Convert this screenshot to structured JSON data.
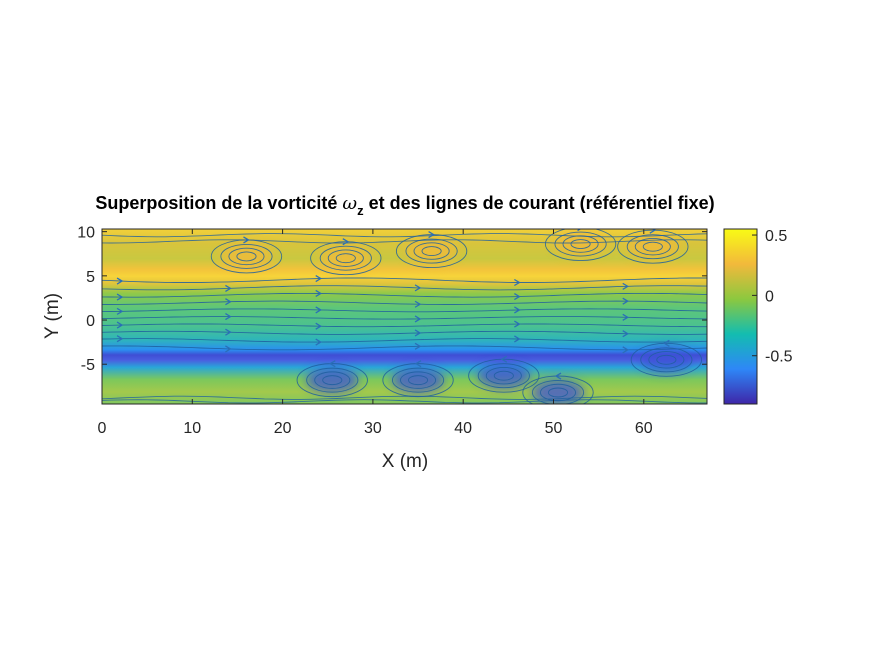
{
  "chart_data": {
    "type": "heatmap",
    "title_prefix": "Superposition de la vorticité ",
    "title_symbol": "ω",
    "title_subscript": "z",
    "title_suffix": " et des lignes de courant (référentiel fixe)",
    "xlabel": "X (m)",
    "ylabel": "Y (m)",
    "xlim": [
      0,
      67
    ],
    "ylim": [
      -9.5,
      10.3
    ],
    "xticks": [
      0,
      10,
      20,
      30,
      40,
      50,
      60
    ],
    "yticks": [
      -5,
      0,
      5,
      10
    ],
    "colorbar": {
      "clim": [
        -0.9,
        0.55
      ],
      "ticks": [
        -0.5,
        0,
        0.5
      ],
      "colormap": "parula",
      "colors": [
        "#3e26a8",
        "#2e87f7",
        "#13bdb0",
        "#8cc83f",
        "#f2b93b",
        "#f9fb15"
      ]
    },
    "streamline_color": "#1f5f9f",
    "vortices": [
      {
        "x": 16,
        "y": 7.2,
        "sense": "ccw",
        "sign": "positive"
      },
      {
        "x": 27,
        "y": 7.0,
        "sense": "ccw",
        "sign": "positive"
      },
      {
        "x": 36.5,
        "y": 7.8,
        "sense": "ccw",
        "sign": "positive"
      },
      {
        "x": 53,
        "y": 8.6,
        "sense": "ccw",
        "sign": "positive"
      },
      {
        "x": 61,
        "y": 8.3,
        "sense": "ccw",
        "sign": "positive"
      },
      {
        "x": 25.5,
        "y": -6.8,
        "sense": "cw",
        "sign": "negative"
      },
      {
        "x": 35,
        "y": -6.8,
        "sense": "cw",
        "sign": "negative"
      },
      {
        "x": 44.5,
        "y": -6.3,
        "sense": "cw",
        "sign": "negative"
      },
      {
        "x": 50.5,
        "y": -8.2,
        "sense": "cw",
        "sign": "negative"
      },
      {
        "x": 62.5,
        "y": -4.5,
        "sense": "cw",
        "sign": "negative"
      }
    ],
    "vorticity_bands": [
      {
        "y": 5.0,
        "value": 0.42,
        "note": "positive shear layer"
      },
      {
        "y": -4.6,
        "value": -0.65,
        "note": "negative shear layer"
      }
    ]
  }
}
